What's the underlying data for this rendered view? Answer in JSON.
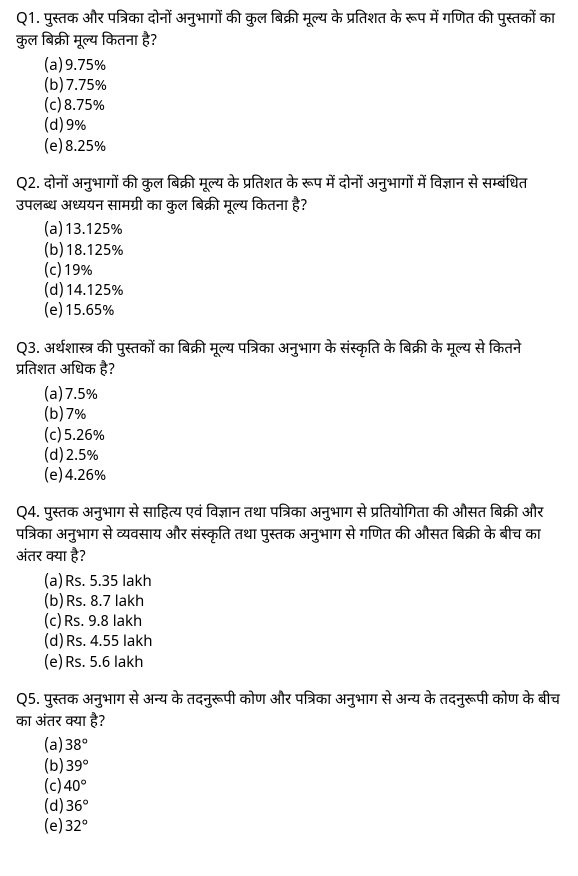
{
  "questions": [
    {
      "label": "Q1.",
      "text": "पुस्तक और पत्रिका दोनों अनुभागों की कुल बिक्री मूल्य के प्रतिशत के रूप में गणित की पुस्तकों का कुल बिक्री मूल्य कितना है?",
      "options": [
        {
          "letter": "(a)",
          "value": "9.75%"
        },
        {
          "letter": "(b)",
          "value": "7.75%"
        },
        {
          "letter": "(c)",
          "value": "8.75%"
        },
        {
          "letter": "(d)",
          "value": "9%"
        },
        {
          "letter": "(e)",
          "value": "8.25%"
        }
      ]
    },
    {
      "label": "Q2.",
      "text": "दोनों अनुभागों की कुल बिक्री मूल्य के प्रतिशत के रूप में दोनों अनुभागों में विज्ञान से सम्बंधित उपलब्ध अध्ययन सामग्री का कुल बिक्री मूल्य कितना है?",
      "options": [
        {
          "letter": "(a)",
          "value": "13.125%"
        },
        {
          "letter": "(b)",
          "value": "18.125%"
        },
        {
          "letter": "(c)",
          "value": "19%"
        },
        {
          "letter": "(d)",
          "value": "14.125%"
        },
        {
          "letter": "(e)",
          "value": "15.65%"
        }
      ]
    },
    {
      "label": "Q3.",
      "text": "अर्थशास्त्र की पुस्तकों का बिक्री मूल्य पत्रिका अनुभाग के संस्कृति के बिक्री के मूल्य से कितने प्रतिशत अधिक है?",
      "options": [
        {
          "letter": "(a)",
          "value": "7.5%"
        },
        {
          "letter": "(b)",
          "value": "7%"
        },
        {
          "letter": "(c)",
          "value": "5.26%"
        },
        {
          "letter": "(d)",
          "value": "2.5%"
        },
        {
          "letter": "(e)",
          "value": "4.26%"
        }
      ]
    },
    {
      "label": "Q4.",
      "text": "पुस्तक अनुभाग से साहित्य एवं विज्ञान तथा पत्रिका अनुभाग से प्रतियोगिता की औसत बिक्री और पत्रिका अनुभाग से व्यवसाय और संस्कृति तथा पुस्तक अनुभाग से गणित की औसत बिक्री के बीच का अंतर क्या है?",
      "options": [
        {
          "letter": "(a)",
          "value": "Rs. 5.35 lakh"
        },
        {
          "letter": "(b)",
          "value": "Rs. 8.7 lakh"
        },
        {
          "letter": "(c)",
          "value": "Rs. 9.8 lakh"
        },
        {
          "letter": "(d)",
          "value": "Rs. 4.55 lakh"
        },
        {
          "letter": "(e)",
          "value": "Rs. 5.6 lakh"
        }
      ]
    },
    {
      "label": "Q5.",
      "text": "पुस्तक अनुभाग से अन्य के तदनुरूपी कोण और पत्रिका अनुभाग से अन्य के तदनुरूपी कोण के बीच का अंतर क्या है?",
      "options": [
        {
          "letter": "(a)",
          "value": "38°"
        },
        {
          "letter": "(b)",
          "value": "39°"
        },
        {
          "letter": "(c)",
          "value": "40°"
        },
        {
          "letter": "(d)",
          "value": "36°"
        },
        {
          "letter": "(e)",
          "value": "32°"
        }
      ]
    }
  ]
}
